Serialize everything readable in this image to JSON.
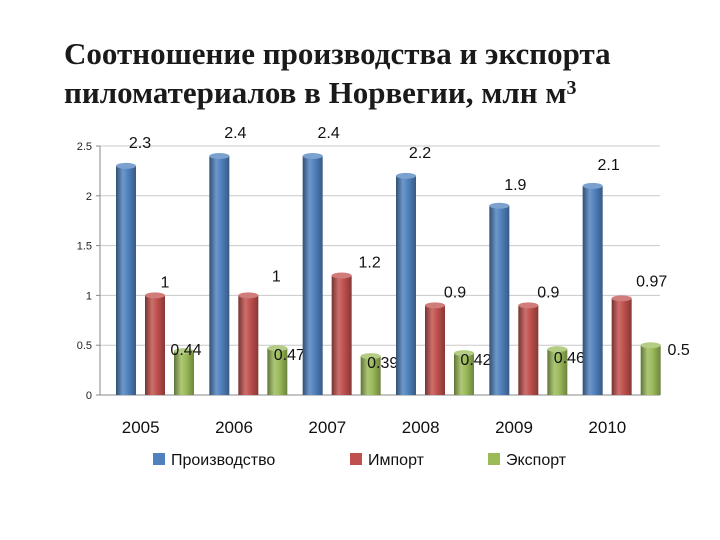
{
  "chart_data": {
    "type": "bar",
    "title_line1": "Соотношение производства и экспорта",
    "title_line2": "пиломатериалов в Норвегии, млн м",
    "title_sup": "3",
    "categories": [
      "2005",
      "2006",
      "2007",
      "2008",
      "2009",
      "2010"
    ],
    "series": [
      {
        "name": "Производство",
        "values": [
          2.3,
          2.4,
          2.4,
          2.2,
          1.9,
          2.1
        ],
        "labels": [
          "2.3",
          "2.4",
          "2.4",
          "2.2",
          "1.9",
          "2.1"
        ],
        "color": "#4f81bd"
      },
      {
        "name": "Импорт",
        "values": [
          1,
          1,
          1.2,
          0.9,
          0.9,
          0.97
        ],
        "labels": [
          "1",
          "1",
          "1.2",
          "0.9",
          "0.9",
          "0.97"
        ],
        "color": "#c0504d"
      },
      {
        "name": "Экспорт",
        "values": [
          0.44,
          0.47,
          0.39,
          0.42,
          0.46,
          0.5
        ],
        "labels": [
          "0.44",
          "0.47",
          "0.39",
          "0.42",
          "0.46",
          "0.5"
        ],
        "color": "#9bbb59"
      }
    ],
    "yticks": [
      "0",
      "0.5",
      "1",
      "1.5",
      "2",
      "2.5"
    ],
    "ylim": [
      0,
      2.5
    ],
    "grid": true,
    "legend": "bottom"
  }
}
